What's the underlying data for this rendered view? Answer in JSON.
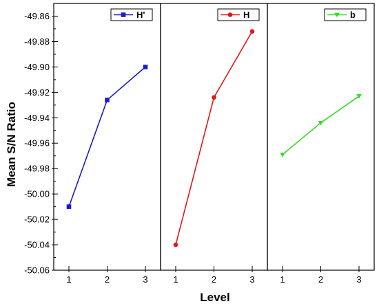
{
  "chart_data": {
    "type": "line",
    "ylabel": "Mean S/N Ratio",
    "xlabel": "Level",
    "ylim": [
      -50.06,
      -49.85
    ],
    "yticks": [
      -50.06,
      -50.04,
      -50.02,
      -50.0,
      -49.98,
      -49.96,
      -49.94,
      -49.92,
      -49.9,
      -49.88,
      -49.86
    ],
    "ytick_labels": [
      "-50.06",
      "-50.04",
      "-50.02",
      "-50.00",
      "-49.98",
      "-49.96",
      "-49.94",
      "-49.92",
      "-49.90",
      "-49.88",
      "-49.86"
    ],
    "grid": false,
    "legend_placement": "top-right of each panel",
    "panels": [
      {
        "series_name": "H'",
        "color": "#1a1acc",
        "marker": "square",
        "x": [
          1,
          2,
          3
        ],
        "x_labels": [
          "1",
          "2",
          "3"
        ],
        "values": [
          -50.01,
          -49.926,
          -49.9
        ]
      },
      {
        "series_name": "H",
        "color": "#e01818",
        "marker": "circle",
        "x": [
          1,
          2,
          3
        ],
        "x_labels": [
          "1",
          "2",
          "3"
        ],
        "values": [
          -50.04,
          -49.924,
          -49.872
        ]
      },
      {
        "series_name": "b",
        "color": "#33dd22",
        "marker": "triangle-down",
        "x": [
          1,
          2,
          3
        ],
        "x_labels": [
          "1",
          "2",
          "3"
        ],
        "values": [
          -49.969,
          -49.944,
          -49.923
        ]
      }
    ]
  }
}
